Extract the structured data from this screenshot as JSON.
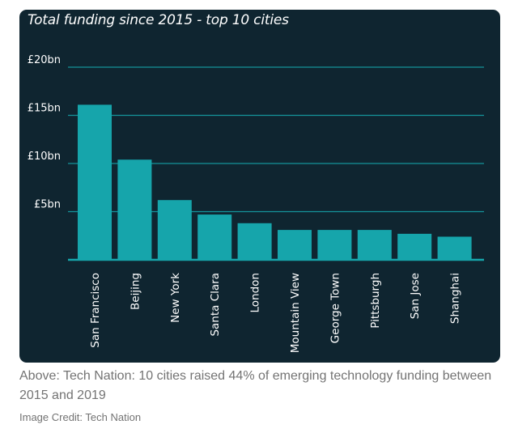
{
  "caption": "Above: Tech Nation: 10 cities raised 44% of emerging technology funding between 2015 and 2019",
  "credit": "Image Credit: Tech Nation",
  "colors": {
    "background": "#0f2530",
    "bar": "#16a5ab",
    "grid": "#14959a",
    "text": "#ffffff"
  },
  "chart_data": {
    "type": "bar",
    "title": "Total funding since 2015 - top 10 cities",
    "xlabel": "",
    "ylabel": "",
    "unit": "£bn",
    "categories": [
      "San Francisco",
      "Beijing",
      "New York",
      "Santa Clara",
      "London",
      "Mountain View",
      "George Town",
      "Pittsburgh",
      "San Jose",
      "Shanghai"
    ],
    "values": [
      16.1,
      10.4,
      6.2,
      4.7,
      3.8,
      3.1,
      3.1,
      3.1,
      2.7,
      2.4
    ],
    "yticks": [
      5,
      10,
      15,
      20
    ],
    "ytick_labels": [
      "£5bn",
      "£10bn",
      "£15bn",
      "£20bn"
    ],
    "ylim": [
      0,
      20
    ],
    "grid": true,
    "legend": "none"
  }
}
